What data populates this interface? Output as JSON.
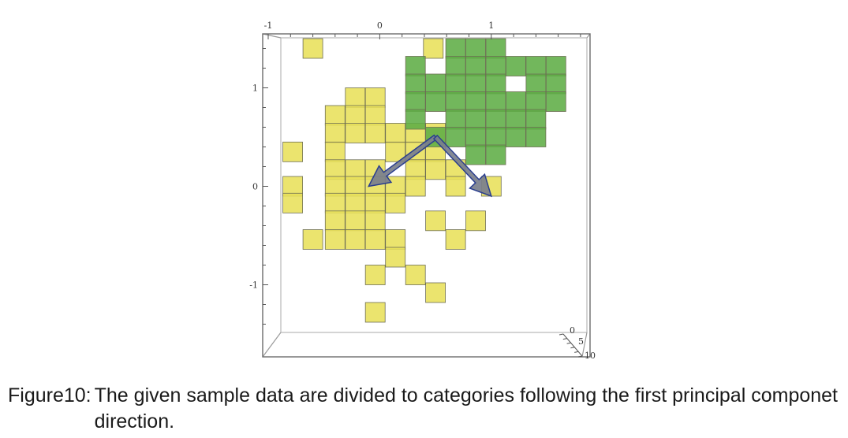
{
  "chart_data": {
    "type": "scatter",
    "title": "",
    "xlabel": "",
    "ylabel": "",
    "x_ticks": [
      "-1",
      "0",
      "1"
    ],
    "y_ticks": [
      "1",
      "0",
      "-1"
    ],
    "z_ticks": [
      "0",
      "5",
      "10"
    ],
    "xlim": [
      -1.0,
      1.85
    ],
    "ylim": [
      -1.5,
      1.5
    ],
    "grid": false,
    "series": [
      {
        "color": "#e8e05a",
        "points": [
          [
            -0.6,
            1.4
          ],
          [
            0.48,
            1.4
          ],
          [
            -0.04,
            0.9
          ],
          [
            -0.04,
            0.72
          ],
          [
            -0.22,
            0.9
          ],
          [
            -0.22,
            0.72
          ],
          [
            -0.4,
            0.72
          ],
          [
            -0.4,
            0.54
          ],
          [
            -0.22,
            0.54
          ],
          [
            -0.04,
            0.54
          ],
          [
            0.14,
            0.54
          ],
          [
            0.32,
            0.54
          ],
          [
            0.5,
            0.54
          ],
          [
            -0.78,
            0.35
          ],
          [
            -0.4,
            0.35
          ],
          [
            0.14,
            0.35
          ],
          [
            0.32,
            0.35
          ],
          [
            0.5,
            0.35
          ],
          [
            -0.4,
            0.17
          ],
          [
            -0.22,
            0.17
          ],
          [
            -0.04,
            0.17
          ],
          [
            0.32,
            0.17
          ],
          [
            0.5,
            0.17
          ],
          [
            0.68,
            0.17
          ],
          [
            -0.78,
            0.0
          ],
          [
            -0.4,
            0.0
          ],
          [
            -0.22,
            0.0
          ],
          [
            -0.04,
            0.0
          ],
          [
            0.14,
            0.0
          ],
          [
            0.32,
            0.0
          ],
          [
            0.68,
            0.0
          ],
          [
            1.0,
            0.0
          ],
          [
            -0.78,
            -0.17
          ],
          [
            -0.4,
            -0.17
          ],
          [
            -0.22,
            -0.17
          ],
          [
            -0.04,
            -0.17
          ],
          [
            0.14,
            -0.17
          ],
          [
            -0.4,
            -0.35
          ],
          [
            -0.22,
            -0.35
          ],
          [
            -0.04,
            -0.35
          ],
          [
            0.5,
            -0.35
          ],
          [
            0.86,
            -0.35
          ],
          [
            -0.6,
            -0.54
          ],
          [
            -0.4,
            -0.54
          ],
          [
            -0.22,
            -0.54
          ],
          [
            -0.04,
            -0.54
          ],
          [
            0.14,
            -0.54
          ],
          [
            0.68,
            -0.54
          ],
          [
            0.14,
            -0.72
          ],
          [
            -0.04,
            -0.9
          ],
          [
            0.32,
            -0.9
          ],
          [
            0.5,
            -1.08
          ],
          [
            -0.04,
            -1.28
          ]
        ]
      },
      {
        "color": "#5fad45",
        "points": [
          [
            0.68,
            1.4
          ],
          [
            0.86,
            1.4
          ],
          [
            1.04,
            1.4
          ],
          [
            0.32,
            1.22
          ],
          [
            0.68,
            1.22
          ],
          [
            0.86,
            1.22
          ],
          [
            1.04,
            1.22
          ],
          [
            1.22,
            1.22
          ],
          [
            1.4,
            1.22
          ],
          [
            1.58,
            1.22
          ],
          [
            0.32,
            1.04
          ],
          [
            0.5,
            1.04
          ],
          [
            0.68,
            1.04
          ],
          [
            0.86,
            1.04
          ],
          [
            1.04,
            1.04
          ],
          [
            1.4,
            1.04
          ],
          [
            1.58,
            1.04
          ],
          [
            0.32,
            0.86
          ],
          [
            0.5,
            0.86
          ],
          [
            0.68,
            0.86
          ],
          [
            0.86,
            0.86
          ],
          [
            1.04,
            0.86
          ],
          [
            1.22,
            0.86
          ],
          [
            1.4,
            0.86
          ],
          [
            1.58,
            0.86
          ],
          [
            0.32,
            0.68
          ],
          [
            0.68,
            0.68
          ],
          [
            0.86,
            0.68
          ],
          [
            1.04,
            0.68
          ],
          [
            1.22,
            0.68
          ],
          [
            1.4,
            0.68
          ],
          [
            0.5,
            0.5
          ],
          [
            0.68,
            0.5
          ],
          [
            0.86,
            0.5
          ],
          [
            1.04,
            0.5
          ],
          [
            1.22,
            0.5
          ],
          [
            1.4,
            0.5
          ],
          [
            0.86,
            0.32
          ],
          [
            1.04,
            0.32
          ]
        ]
      }
    ],
    "arrows": [
      {
        "color": "#7a7f8c",
        "from": [
          0.5,
          0.5
        ],
        "to": [
          -0.1,
          0.0
        ]
      },
      {
        "color": "#7a7f8c",
        "from": [
          0.5,
          0.5
        ],
        "to": [
          1.0,
          -0.1
        ]
      }
    ]
  },
  "caption": {
    "label": "Figure10:",
    "text": "The given sample data are divided to categories following the first principal componet direction."
  }
}
